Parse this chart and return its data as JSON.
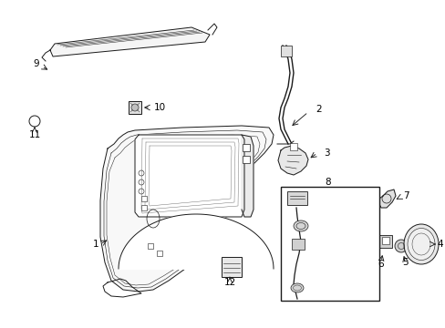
{
  "bg_color": "#ffffff",
  "line_color": "#1a1a1a",
  "label_color": "#000000",
  "fig_width": 4.89,
  "fig_height": 3.6,
  "dpi": 100,
  "lw": 0.7,
  "label_fs": 7.5
}
